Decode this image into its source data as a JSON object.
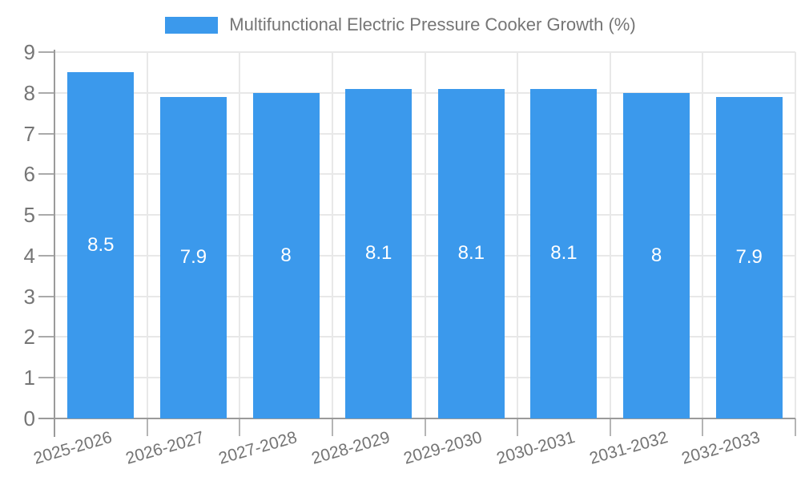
{
  "chart_data": {
    "type": "bar",
    "title": "Multifunctional Electric Pressure Cooker Growth (%)",
    "categories": [
      "2025-2026",
      "2026-2027",
      "2027-2028",
      "2028-2029",
      "2029-2030",
      "2030-2031",
      "2031-2032",
      "2032-2033"
    ],
    "values": [
      8.5,
      7.9,
      8,
      8.1,
      8.1,
      8.1,
      8,
      7.9
    ],
    "value_labels": [
      "8.5",
      "7.9",
      "8",
      "8.1",
      "8.1",
      "8.1",
      "8",
      "7.9"
    ],
    "yticks": [
      0,
      1,
      2,
      3,
      4,
      5,
      6,
      7,
      8,
      9
    ],
    "ylim": [
      0,
      9
    ],
    "xlabel": "",
    "ylabel": "",
    "grid": true,
    "legend_position": "top",
    "colors": {
      "bar": "#3B99EC",
      "value_label": "#FFFFFF",
      "axis": "#9A9A9A",
      "grid": "#E8E8E8",
      "text": "#757575",
      "background": "#FFFFFF"
    }
  }
}
